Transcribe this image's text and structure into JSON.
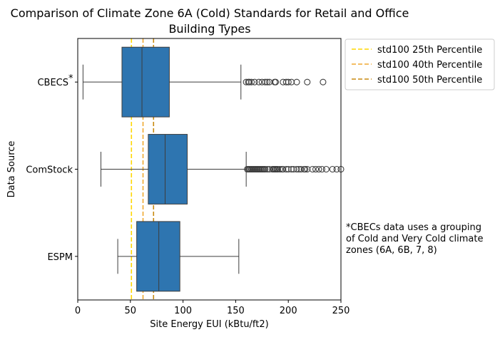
{
  "chart_data": {
    "type": "boxplot",
    "orientation": "horizontal",
    "title_line1": "Comparison of Climate Zone 6A (Cold) Standards for Retail and Office",
    "title_line2": "Building Types",
    "xlabel": "Site Energy EUI (kBtu/ft2)",
    "ylabel": "Data Source",
    "xlim": [
      0,
      250
    ],
    "xticks": [
      0,
      50,
      100,
      150,
      200,
      250
    ],
    "categories": [
      "CBECS",
      "ComStock",
      "ESPM"
    ],
    "asterisk_category": "CBECS",
    "box_color": "#2e75b0",
    "boxes": [
      {
        "name": "CBECS",
        "whisker_low": 5,
        "q1": 42,
        "median": 61,
        "q3": 87,
        "whisker_high": 155,
        "outliers": [
          160,
          162,
          163,
          165,
          168,
          172,
          175,
          178,
          180,
          182,
          187,
          188,
          195,
          198,
          200,
          203,
          208,
          218,
          233
        ]
      },
      {
        "name": "ComStock",
        "whisker_low": 22,
        "q1": 67,
        "median": 83,
        "q3": 104,
        "whisker_high": 160,
        "outliers": [
          161,
          162,
          163,
          164,
          165,
          166,
          167,
          168,
          169,
          170,
          171,
          172,
          173,
          174,
          175,
          176,
          177,
          178,
          180,
          182,
          185,
          186,
          187,
          188,
          189,
          190,
          192,
          194,
          195,
          198,
          200,
          203,
          205,
          208,
          210,
          212,
          215,
          216,
          218,
          223,
          226,
          229,
          232,
          236,
          242,
          246,
          250
        ]
      },
      {
        "name": "ESPM",
        "whisker_low": 38,
        "q1": 56,
        "median": 77,
        "q3": 97,
        "whisker_high": 153,
        "outliers": []
      }
    ],
    "reference_lines": [
      {
        "name": "std100 25th Percentile",
        "value": 51,
        "color": "#ffd700"
      },
      {
        "name": "std100 40th Percentile",
        "value": 62,
        "color": "#f0a830"
      },
      {
        "name": "std100 50th Percentile",
        "value": 72,
        "color": "#c88a10"
      }
    ],
    "legend_position": "outside-top-right",
    "note_lines": [
      "*CBECs data uses a grouping",
      "of Cold and Very Cold climate",
      "zones (6A, 6B, 7, 8)"
    ],
    "grid": false
  }
}
